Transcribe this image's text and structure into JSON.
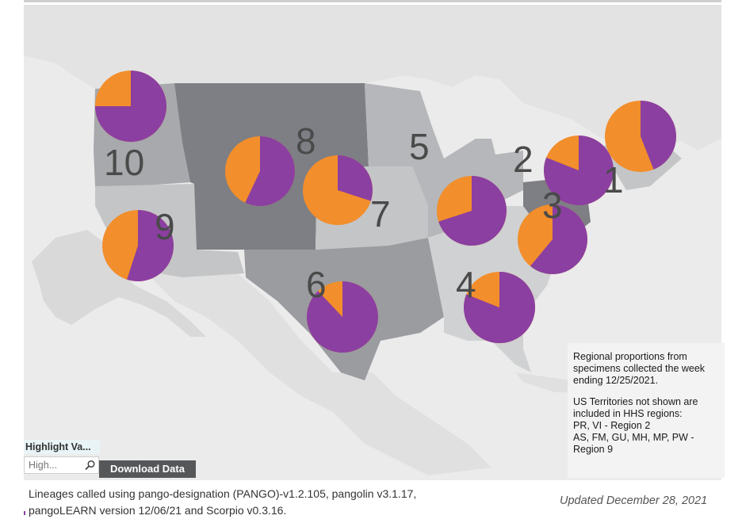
{
  "map": {
    "colors": {
      "ocean": "#ebebeb",
      "canada": "#e6e6e6",
      "omicron_share_color": "#8b3fa1",
      "other_lineage_color": "#f28e2b",
      "region_palette": [
        "#a7a9ac",
        "#c4c5c7",
        "#7d7f84",
        "#9a9ca0",
        "#b6b7ba",
        "#d0d1d2"
      ]
    },
    "regions": [
      {
        "number": "1",
        "share_purple": 0.44
      },
      {
        "number": "2",
        "share_purple": 0.81
      },
      {
        "number": "3",
        "share_purple": 0.61
      },
      {
        "number": "4",
        "share_purple": 0.81
      },
      {
        "number": "5",
        "share_purple": 0.7
      },
      {
        "number": "6",
        "share_purple": 0.88
      },
      {
        "number": "7",
        "share_purple": 0.3
      },
      {
        "number": "8",
        "share_purple": 0.57
      },
      {
        "number": "9",
        "share_purple": 0.55
      },
      {
        "number": "10",
        "share_purple": 0.75
      }
    ]
  },
  "info": {
    "line1": [
      "Regional proportions from",
      "specimens collected the week",
      "ending 12/25/2021."
    ],
    "line2": [
      "US Territories not shown are",
      "included in HHS regions:",
      "PR, VI - Region 2",
      "AS, FM, GU, MH, MP, PW -",
      "Region 9"
    ]
  },
  "controls": {
    "highlight_label": "Highlight Va...",
    "highlight_placeholder": "High...",
    "download_label": "Download Data"
  },
  "footer": {
    "note_line1": "Lineages called using pango-designation (PANGO)-v1.2.105, pangolin v3.1.17,",
    "note_line2": "pangoLEARN version 12/06/21 and Scorpio v0.3.16.",
    "updated": "Updated December 28, 2021"
  }
}
